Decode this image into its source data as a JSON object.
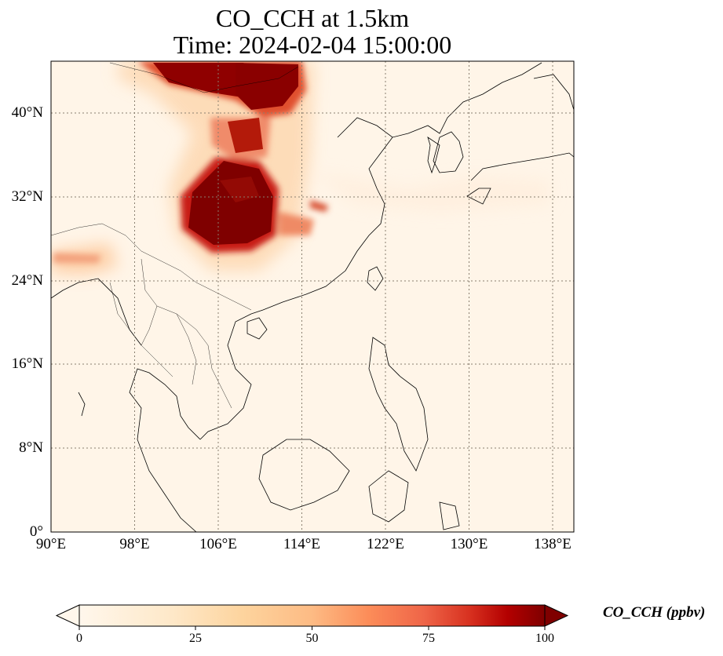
{
  "title": {
    "line1": "CO_CCH at 1.5km",
    "line2": "Time: 2024-02-04 15:00:00"
  },
  "map": {
    "projection": "PlateCarree",
    "lon_range": [
      90,
      140
    ],
    "lat_range": [
      0,
      45
    ],
    "gridlines": "dotted",
    "coastlines": true,
    "borders": true,
    "colormap": "OrRd"
  },
  "axes": {
    "y_ticks": [
      "40°N",
      "32°N",
      "24°N",
      "16°N",
      "8°N",
      "0°"
    ],
    "x_ticks": [
      "90°E",
      "98°E",
      "106°E",
      "114°E",
      "122°E",
      "130°E",
      "138°E"
    ]
  },
  "colorbar": {
    "label": "CO_CCH (ppbv)",
    "ticks": [
      "0",
      "25",
      "50",
      "75",
      "100"
    ],
    "range": [
      0,
      100
    ],
    "extend": "both",
    "colors": [
      "#fff7ec",
      "#fee8c8",
      "#fdd49e",
      "#fdbb84",
      "#fc8d59",
      "#ef6548",
      "#d7301f",
      "#b30000",
      "#7f0000"
    ]
  }
}
